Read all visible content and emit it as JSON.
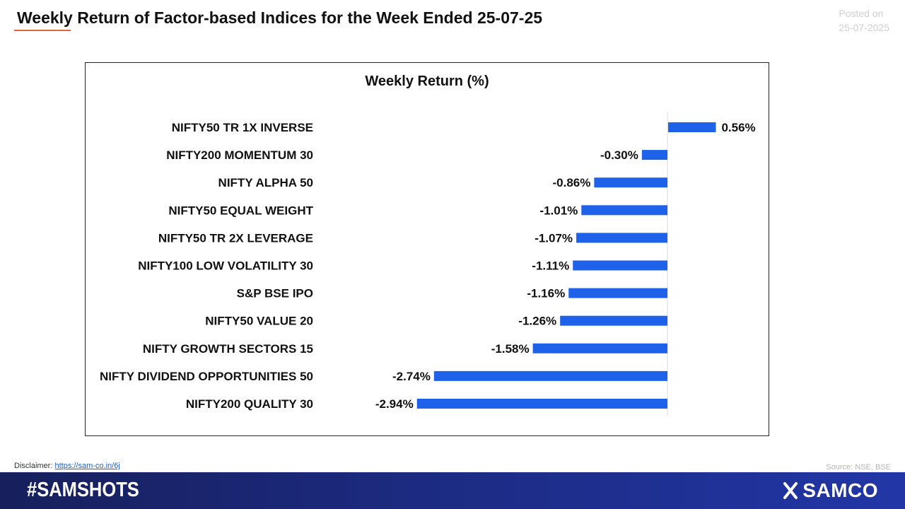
{
  "header": {
    "title": "Weekly Return of Factor-based Indices for the Week Ended 25-07-25",
    "posted_line1": "Posted on",
    "posted_line2": "25-07-2025"
  },
  "footer": {
    "disclaimer_label": "Disclaimer:",
    "disclaimer_link": "https://sam-co.in/6j",
    "source": "Source: NSE, BSE",
    "hashtag": "#SAMSHOTS",
    "brand": "SAMCO"
  },
  "colors": {
    "bar": "#1f62ea",
    "accent_underline": "#e0663a",
    "footer_bg": "#1c2a80"
  },
  "chart_data": {
    "type": "bar",
    "orientation": "horizontal",
    "title": "Weekly Return (%)",
    "categories": [
      "NIFTY50 TR 1X INVERSE",
      "NIFTY200 MOMENTUM 30",
      "NIFTY ALPHA 50",
      "NIFTY50 EQUAL WEIGHT",
      "NIFTY50 TR 2X LEVERAGE",
      "NIFTY100 LOW VOLATILITY 30",
      "S&P BSE IPO",
      "NIFTY50 VALUE 20",
      "NIFTY GROWTH SECTORS 15",
      "NIFTY DIVIDEND OPPORTUNITIES 50",
      "NIFTY200 QUALITY 30"
    ],
    "values": [
      0.56,
      -0.3,
      -0.86,
      -1.01,
      -1.07,
      -1.11,
      -1.16,
      -1.26,
      -1.58,
      -2.74,
      -2.94
    ],
    "data_labels": [
      "0.56%",
      "-0.30%",
      "-0.86%",
      "-1.01%",
      "-1.07%",
      "-1.11%",
      "-1.16%",
      "-1.26%",
      "-1.58%",
      "-2.74%",
      "-2.94%"
    ],
    "grid": false,
    "legend": "none"
  }
}
